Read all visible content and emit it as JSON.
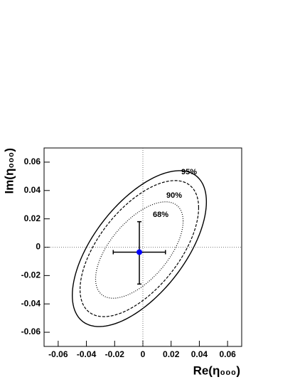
{
  "chart_data": {
    "type": "contour",
    "x_label": "Re(η₀₀₀)",
    "y_label": "Im(η₀₀₀)",
    "xlim": [
      -0.07,
      0.07
    ],
    "ylim": [
      -0.07,
      0.07
    ],
    "xticks": [
      -0.06,
      -0.04,
      -0.02,
      0,
      0.02,
      0.04,
      0.06
    ],
    "yticks": [
      -0.06,
      -0.04,
      -0.02,
      0,
      0.02,
      0.04,
      0.06
    ],
    "point": {
      "x": -0.0025,
      "y": -0.0035,
      "x_range": [
        -0.021,
        0.016
      ],
      "y_range": [
        -0.026,
        0.018
      ],
      "color": "#0000ff"
    },
    "contours": [
      {
        "name": "95%",
        "cx": -0.0025,
        "cy": -0.001,
        "sx": 0.0475,
        "sy": 0.055,
        "rho": 0.6,
        "style": "solid"
      },
      {
        "name": "90%",
        "cx": -0.0025,
        "cy": -0.001,
        "sx": 0.042,
        "sy": 0.048,
        "rho": 0.6,
        "style": "dashed"
      },
      {
        "name": "68%",
        "cx": -0.0025,
        "cy": -0.002,
        "sx": 0.031,
        "sy": 0.034,
        "rho": 0.6,
        "style": "dotted"
      }
    ]
  }
}
